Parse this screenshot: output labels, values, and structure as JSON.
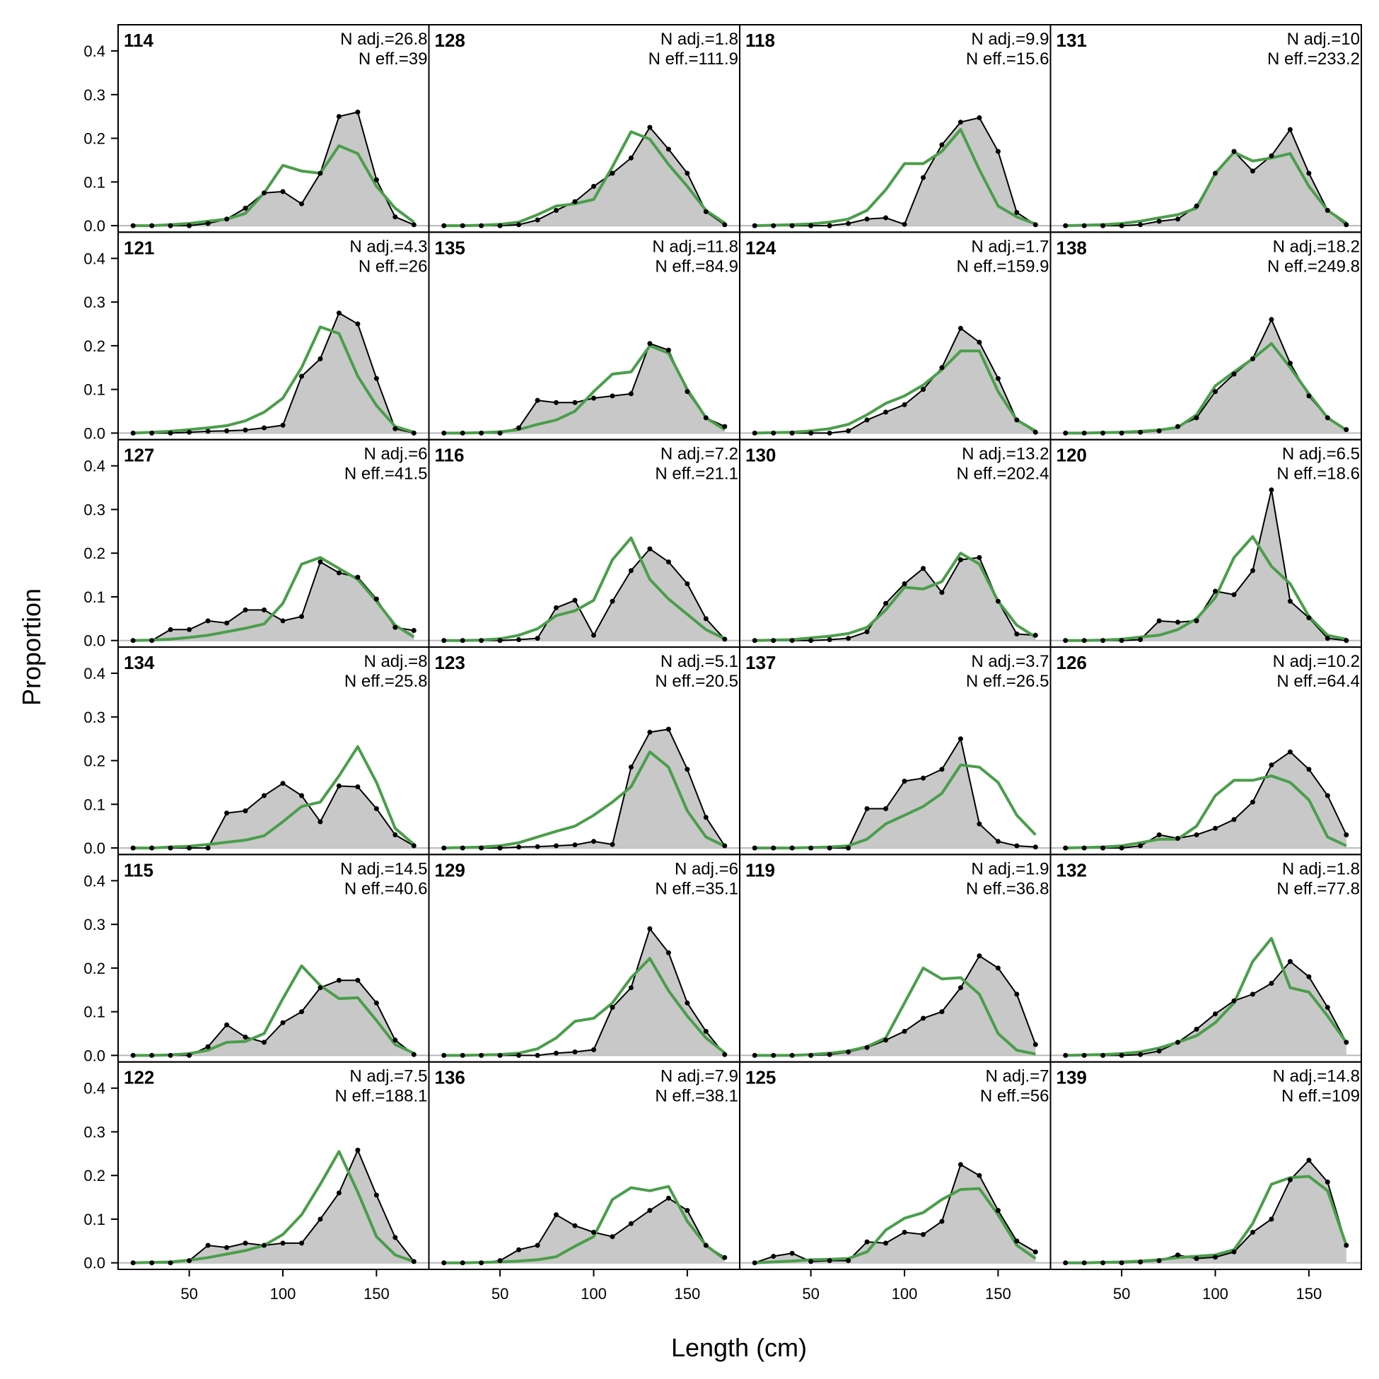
{
  "chart_data": {
    "type": "area",
    "xlabel": "Length (cm)",
    "ylabel": "Proportion",
    "xlim": [
      12,
      178
    ],
    "ylim": [
      -0.015,
      0.46
    ],
    "x_ticks": [
      50,
      100,
      150
    ],
    "y_ticks": [
      0.0,
      0.1,
      0.2,
      0.3,
      0.4
    ],
    "y_tick_labels": [
      "0.0",
      "0.1",
      "0.2",
      "0.3",
      "0.4"
    ],
    "grid": false,
    "layout": {
      "rows": 6,
      "cols": 4
    },
    "series_styles": {
      "observed": {
        "fill": "#c8c8c8",
        "line": "#000000",
        "points": true
      },
      "expected": {
        "line": "#4a9e4a"
      }
    },
    "x": [
      20,
      30,
      40,
      50,
      60,
      70,
      80,
      90,
      100,
      110,
      120,
      130,
      140,
      150,
      160,
      170
    ],
    "panels": [
      {
        "id": "114",
        "n_adj": "N adj.=26.8",
        "n_eff": "N eff.=39",
        "observed": [
          0,
          0,
          0,
          0,
          0.005,
          0.015,
          0.04,
          0.075,
          0.078,
          0.05,
          0.12,
          0.25,
          0.26,
          0.105,
          0.02,
          0.002
        ],
        "expected": [
          0,
          0,
          0.002,
          0.005,
          0.01,
          0.015,
          0.028,
          0.075,
          0.138,
          0.125,
          0.12,
          0.183,
          0.165,
          0.09,
          0.04,
          0.008
        ]
      },
      {
        "id": "121",
        "n_adj": "N adj.=4.3",
        "n_eff": "N eff.=26",
        "observed": [
          0,
          0,
          0,
          0.002,
          0.004,
          0.005,
          0.007,
          0.012,
          0.018,
          0.13,
          0.17,
          0.275,
          0.25,
          0.125,
          0.01,
          0
        ],
        "expected": [
          0,
          0.002,
          0.004,
          0.008,
          0.012,
          0.017,
          0.028,
          0.048,
          0.08,
          0.15,
          0.243,
          0.228,
          0.13,
          0.063,
          0.015,
          0.002
        ]
      },
      {
        "id": "127",
        "n_adj": "N adj.=6",
        "n_eff": "N eff.=41.5",
        "observed": [
          0,
          0,
          0.025,
          0.025,
          0.045,
          0.04,
          0.07,
          0.07,
          0.045,
          0.055,
          0.18,
          0.155,
          0.145,
          0.095,
          0.03,
          0.023
        ],
        "expected": [
          0,
          0.001,
          0.003,
          0.007,
          0.012,
          0.02,
          0.028,
          0.038,
          0.085,
          0.175,
          0.19,
          0.165,
          0.14,
          0.09,
          0.035,
          0.008
        ]
      },
      {
        "id": "134",
        "n_adj": "N adj.=8",
        "n_eff": "N eff.=25.8",
        "observed": [
          0,
          0,
          0,
          0,
          0,
          0.08,
          0.085,
          0.12,
          0.148,
          0.12,
          0.06,
          0.142,
          0.14,
          0.09,
          0.03,
          0.005
        ],
        "expected": [
          0,
          0,
          0.002,
          0.004,
          0.008,
          0.013,
          0.018,
          0.028,
          0.06,
          0.095,
          0.105,
          0.165,
          0.232,
          0.15,
          0.045,
          0.008
        ]
      },
      {
        "id": "115",
        "n_adj": "N adj.=14.5",
        "n_eff": "N eff.=40.6",
        "observed": [
          0,
          0,
          0,
          0,
          0.02,
          0.07,
          0.042,
          0.03,
          0.075,
          0.1,
          0.155,
          0.172,
          0.172,
          0.12,
          0.035,
          0.002
        ],
        "expected": [
          0,
          0,
          0.001,
          0.004,
          0.012,
          0.03,
          0.032,
          0.05,
          0.13,
          0.205,
          0.16,
          0.13,
          0.132,
          0.08,
          0.025,
          0.005
        ]
      },
      {
        "id": "122",
        "n_adj": "N adj.=7.5",
        "n_eff": "N eff.=188.1",
        "observed": [
          0,
          0,
          0,
          0.005,
          0.04,
          0.035,
          0.045,
          0.04,
          0.045,
          0.045,
          0.1,
          0.16,
          0.258,
          0.155,
          0.058,
          0.003
        ],
        "expected": [
          0,
          0.001,
          0.002,
          0.006,
          0.012,
          0.02,
          0.028,
          0.04,
          0.065,
          0.11,
          0.18,
          0.255,
          0.162,
          0.06,
          0.018,
          0.003
        ]
      },
      {
        "id": "128",
        "n_adj": "N adj.=1.8",
        "n_eff": "N eff.=111.9",
        "observed": [
          0,
          0,
          0,
          0,
          0.002,
          0.013,
          0.035,
          0.055,
          0.09,
          0.12,
          0.155,
          0.225,
          0.175,
          0.12,
          0.032,
          0.002
        ],
        "expected": [
          0,
          0,
          0.001,
          0.003,
          0.008,
          0.025,
          0.045,
          0.05,
          0.06,
          0.135,
          0.215,
          0.198,
          0.14,
          0.09,
          0.035,
          0.006
        ]
      },
      {
        "id": "135",
        "n_adj": "N adj.=11.8",
        "n_eff": "N eff.=84.9",
        "observed": [
          0,
          0,
          0,
          0,
          0.012,
          0.075,
          0.07,
          0.07,
          0.08,
          0.085,
          0.09,
          0.205,
          0.19,
          0.095,
          0.035,
          0.015
        ],
        "expected": [
          0,
          0,
          0.001,
          0.003,
          0.008,
          0.02,
          0.03,
          0.05,
          0.095,
          0.135,
          0.14,
          0.2,
          0.183,
          0.1,
          0.035,
          0.008
        ]
      },
      {
        "id": "116",
        "n_adj": "N adj.=7.2",
        "n_eff": "N eff.=21.1",
        "observed": [
          0,
          0,
          0,
          0,
          0.002,
          0.005,
          0.075,
          0.092,
          0.012,
          0.09,
          0.16,
          0.21,
          0.18,
          0.13,
          0.05,
          0.003
        ],
        "expected": [
          0,
          0,
          0.001,
          0.004,
          0.012,
          0.027,
          0.057,
          0.068,
          0.092,
          0.185,
          0.235,
          0.14,
          0.095,
          0.06,
          0.025,
          0.004
        ]
      },
      {
        "id": "123",
        "n_adj": "N adj.=5.1",
        "n_eff": "N eff.=20.5",
        "observed": [
          0,
          0,
          0,
          0,
          0.002,
          0.003,
          0.005,
          0.007,
          0.015,
          0.008,
          0.185,
          0.265,
          0.272,
          0.18,
          0.07,
          0.005
        ],
        "expected": [
          0,
          0.001,
          0.002,
          0.005,
          0.012,
          0.025,
          0.038,
          0.05,
          0.075,
          0.105,
          0.14,
          0.22,
          0.185,
          0.085,
          0.025,
          0.004
        ]
      },
      {
        "id": "129",
        "n_adj": "N adj.=6",
        "n_eff": "N eff.=35.1",
        "observed": [
          0,
          0,
          0,
          0,
          0,
          0,
          0.005,
          0.008,
          0.013,
          0.11,
          0.155,
          0.29,
          0.235,
          0.12,
          0.055,
          0.002
        ],
        "expected": [
          0,
          0,
          0.001,
          0.002,
          0.005,
          0.015,
          0.04,
          0.078,
          0.085,
          0.12,
          0.178,
          0.222,
          0.148,
          0.09,
          0.04,
          0.006
        ]
      },
      {
        "id": "136",
        "n_adj": "N adj.=7.9",
        "n_eff": "N eff.=38.1",
        "observed": [
          0,
          0,
          0,
          0.005,
          0.03,
          0.04,
          0.11,
          0.085,
          0.07,
          0.06,
          0.09,
          0.12,
          0.148,
          0.12,
          0.04,
          0.012
        ],
        "expected": [
          0,
          0,
          0.001,
          0.002,
          0.004,
          0.007,
          0.014,
          0.038,
          0.06,
          0.145,
          0.172,
          0.165,
          0.175,
          0.095,
          0.04,
          0.008
        ]
      },
      {
        "id": "118",
        "n_adj": "N adj.=9.9",
        "n_eff": "N eff.=15.6",
        "observed": [
          0,
          0,
          0,
          0,
          0,
          0.005,
          0.015,
          0.018,
          0.003,
          0.11,
          0.185,
          0.237,
          0.247,
          0.17,
          0.03,
          0.002
        ],
        "expected": [
          0,
          0.001,
          0.002,
          0.004,
          0.008,
          0.015,
          0.035,
          0.082,
          0.142,
          0.142,
          0.17,
          0.22,
          0.128,
          0.045,
          0.02,
          0.004
        ]
      },
      {
        "id": "124",
        "n_adj": "N adj.=1.7",
        "n_eff": "N eff.=159.9",
        "observed": [
          0,
          0,
          0,
          0,
          0,
          0.005,
          0.03,
          0.048,
          0.065,
          0.1,
          0.15,
          0.24,
          0.208,
          0.125,
          0.03,
          0.002
        ],
        "expected": [
          0,
          0.001,
          0.002,
          0.005,
          0.01,
          0.02,
          0.042,
          0.068,
          0.085,
          0.11,
          0.145,
          0.188,
          0.188,
          0.095,
          0.03,
          0.005
        ]
      },
      {
        "id": "130",
        "n_adj": "N adj.=13.2",
        "n_eff": "N eff.=202.4",
        "observed": [
          0,
          0,
          0,
          0,
          0.002,
          0.005,
          0.02,
          0.085,
          0.13,
          0.165,
          0.11,
          0.185,
          0.19,
          0.09,
          0.015,
          0.012
        ],
        "expected": [
          0,
          0.001,
          0.002,
          0.006,
          0.01,
          0.016,
          0.03,
          0.07,
          0.122,
          0.118,
          0.135,
          0.2,
          0.175,
          0.09,
          0.035,
          0.008
        ]
      },
      {
        "id": "137",
        "n_adj": "N adj.=3.7",
        "n_eff": "N eff.=26.5",
        "observed": [
          0,
          0,
          0,
          0,
          0,
          0,
          0.09,
          0.09,
          0.153,
          0.16,
          0.18,
          0.25,
          0.055,
          0.015,
          0.005,
          0.002
        ],
        "expected": [
          0,
          0,
          0,
          0.001,
          0.002,
          0.005,
          0.02,
          0.055,
          0.075,
          0.095,
          0.125,
          0.19,
          0.185,
          0.15,
          0.075,
          0.03
        ]
      },
      {
        "id": "119",
        "n_adj": "N adj.=1.9",
        "n_eff": "N eff.=36.8",
        "observed": [
          0,
          0,
          0,
          0,
          0.002,
          0.008,
          0.018,
          0.035,
          0.055,
          0.085,
          0.1,
          0.155,
          0.228,
          0.2,
          0.14,
          0.025
        ],
        "expected": [
          0,
          0,
          0,
          0.002,
          0.005,
          0.01,
          0.02,
          0.04,
          0.12,
          0.2,
          0.175,
          0.178,
          0.14,
          0.05,
          0.012,
          0.003
        ]
      },
      {
        "id": "125",
        "n_adj": "N adj.=7",
        "n_eff": "N eff.=56",
        "observed": [
          0,
          0.015,
          0.022,
          0.003,
          0.005,
          0.005,
          0.048,
          0.045,
          0.07,
          0.065,
          0.095,
          0.225,
          0.2,
          0.12,
          0.05,
          0.025
        ],
        "expected": [
          0,
          0.002,
          0.004,
          0.007,
          0.008,
          0.01,
          0.025,
          0.075,
          0.102,
          0.115,
          0.145,
          0.168,
          0.17,
          0.11,
          0.04,
          0.01
        ]
      },
      {
        "id": "131",
        "n_adj": "N adj.=10",
        "n_eff": "N eff.=233.2",
        "observed": [
          0,
          0,
          0,
          0,
          0.002,
          0.01,
          0.015,
          0.045,
          0.12,
          0.17,
          0.125,
          0.16,
          0.22,
          0.12,
          0.035,
          0.002
        ],
        "expected": [
          0,
          0.001,
          0.002,
          0.005,
          0.01,
          0.018,
          0.025,
          0.04,
          0.12,
          0.168,
          0.148,
          0.155,
          0.165,
          0.09,
          0.035,
          0.006
        ]
      },
      {
        "id": "138",
        "n_adj": "N adj.=18.2",
        "n_eff": "N eff.=249.8",
        "observed": [
          0,
          0,
          0,
          0,
          0.002,
          0.005,
          0.015,
          0.035,
          0.095,
          0.135,
          0.17,
          0.26,
          0.16,
          0.085,
          0.035,
          0.008
        ],
        "expected": [
          0,
          0,
          0.001,
          0.002,
          0.004,
          0.007,
          0.013,
          0.042,
          0.108,
          0.14,
          0.17,
          0.205,
          0.15,
          0.09,
          0.035,
          0.007
        ]
      },
      {
        "id": "120",
        "n_adj": "N adj.=6.5",
        "n_eff": "N eff.=18.6",
        "observed": [
          0,
          0,
          0,
          0,
          0.002,
          0.045,
          0.042,
          0.045,
          0.113,
          0.105,
          0.16,
          0.345,
          0.09,
          0.052,
          0.005,
          0
        ],
        "expected": [
          0,
          0,
          0.001,
          0.003,
          0.008,
          0.012,
          0.025,
          0.05,
          0.098,
          0.19,
          0.238,
          0.17,
          0.13,
          0.055,
          0.012,
          0.003
        ]
      },
      {
        "id": "126",
        "n_adj": "N adj.=10.2",
        "n_eff": "N eff.=64.4",
        "observed": [
          0,
          0,
          0,
          0,
          0.005,
          0.03,
          0.022,
          0.03,
          0.045,
          0.065,
          0.105,
          0.19,
          0.22,
          0.18,
          0.12,
          0.03
        ],
        "expected": [
          0,
          0.001,
          0.002,
          0.005,
          0.012,
          0.02,
          0.02,
          0.05,
          0.12,
          0.155,
          0.155,
          0.165,
          0.15,
          0.11,
          0.025,
          0.005
        ]
      },
      {
        "id": "132",
        "n_adj": "N adj.=1.8",
        "n_eff": "N eff.=77.8",
        "observed": [
          0,
          0,
          0,
          0,
          0.002,
          0.01,
          0.03,
          0.06,
          0.095,
          0.125,
          0.14,
          0.165,
          0.215,
          0.18,
          0.11,
          0.03
        ],
        "expected": [
          0,
          0.001,
          0.002,
          0.004,
          0.008,
          0.017,
          0.03,
          0.045,
          0.075,
          0.12,
          0.215,
          0.268,
          0.155,
          0.145,
          0.09,
          0.03
        ]
      },
      {
        "id": "139",
        "n_adj": "N adj.=14.8",
        "n_eff": "N eff.=109",
        "observed": [
          0,
          0,
          0,
          0,
          0.002,
          0.005,
          0.018,
          0.01,
          0.013,
          0.025,
          0.07,
          0.1,
          0.19,
          0.235,
          0.185,
          0.04
        ],
        "expected": [
          0,
          0,
          0.001,
          0.002,
          0.004,
          0.007,
          0.012,
          0.015,
          0.018,
          0.03,
          0.09,
          0.18,
          0.195,
          0.198,
          0.165,
          0.04
        ]
      }
    ]
  }
}
